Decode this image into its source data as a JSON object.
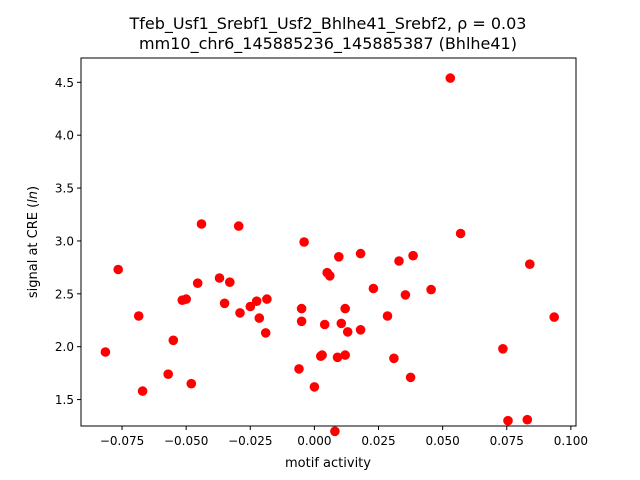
{
  "chart_data": {
    "type": "scatter",
    "title_line1": "Tfeb_Usf1_Srebf1_Usf2_Bhlhe41_Srebf2, ρ = 0.03",
    "title_line2": "mm10_chr6_145885236_145885387 (Bhlhe41)",
    "xlabel": "motif activity",
    "ylabel": "signal at CRE (ln)",
    "xlim": [
      -0.091,
      0.102
    ],
    "ylim": [
      1.25,
      4.73
    ],
    "xticks": [
      -0.075,
      -0.05,
      -0.025,
      0.0,
      0.025,
      0.05,
      0.075,
      0.1
    ],
    "xtick_labels": [
      "−0.075",
      "−0.050",
      "−0.025",
      "0.000",
      "0.025",
      "0.050",
      "0.075",
      "0.100"
    ],
    "yticks": [
      1.5,
      2.0,
      2.5,
      3.0,
      3.5,
      4.0,
      4.5
    ],
    "ytick_labels": [
      "1.5",
      "2.0",
      "2.5",
      "3.0",
      "3.5",
      "4.0",
      "4.5"
    ],
    "marker_color": "#ff0000",
    "grid": false,
    "points": [
      [
        -0.0815,
        1.95
      ],
      [
        -0.0765,
        2.73
      ],
      [
        -0.0685,
        2.29
      ],
      [
        -0.067,
        1.58
      ],
      [
        -0.057,
        1.74
      ],
      [
        -0.055,
        2.06
      ],
      [
        -0.0515,
        2.44
      ],
      [
        -0.05,
        2.45
      ],
      [
        -0.048,
        1.65
      ],
      [
        -0.0455,
        2.6
      ],
      [
        -0.044,
        3.16
      ],
      [
        -0.037,
        2.65
      ],
      [
        -0.035,
        2.41
      ],
      [
        -0.033,
        2.61
      ],
      [
        -0.0295,
        3.14
      ],
      [
        -0.029,
        2.32
      ],
      [
        -0.025,
        2.38
      ],
      [
        -0.0225,
        2.43
      ],
      [
        -0.0215,
        2.27
      ],
      [
        -0.019,
        2.13
      ],
      [
        -0.0185,
        2.45
      ],
      [
        -0.006,
        1.79
      ],
      [
        -0.005,
        2.36
      ],
      [
        -0.005,
        2.24
      ],
      [
        -0.004,
        2.99
      ],
      [
        0.0,
        1.62
      ],
      [
        0.0025,
        1.91
      ],
      [
        0.003,
        1.92
      ],
      [
        0.004,
        2.21
      ],
      [
        0.005,
        2.7
      ],
      [
        0.006,
        2.67
      ],
      [
        0.008,
        1.2
      ],
      [
        0.009,
        1.9
      ],
      [
        0.0095,
        2.85
      ],
      [
        0.0105,
        2.22
      ],
      [
        0.012,
        1.92
      ],
      [
        0.012,
        2.36
      ],
      [
        0.013,
        2.14
      ],
      [
        0.018,
        2.88
      ],
      [
        0.018,
        2.16
      ],
      [
        0.023,
        2.55
      ],
      [
        0.0285,
        2.29
      ],
      [
        0.031,
        1.89
      ],
      [
        0.033,
        2.81
      ],
      [
        0.0355,
        2.49
      ],
      [
        0.0375,
        1.71
      ],
      [
        0.0385,
        2.86
      ],
      [
        0.0455,
        2.54
      ],
      [
        0.053,
        4.54
      ],
      [
        0.057,
        3.07
      ],
      [
        0.0735,
        1.98
      ],
      [
        0.0755,
        1.3
      ],
      [
        0.083,
        1.31
      ],
      [
        0.084,
        2.78
      ],
      [
        0.0935,
        2.28
      ]
    ]
  }
}
